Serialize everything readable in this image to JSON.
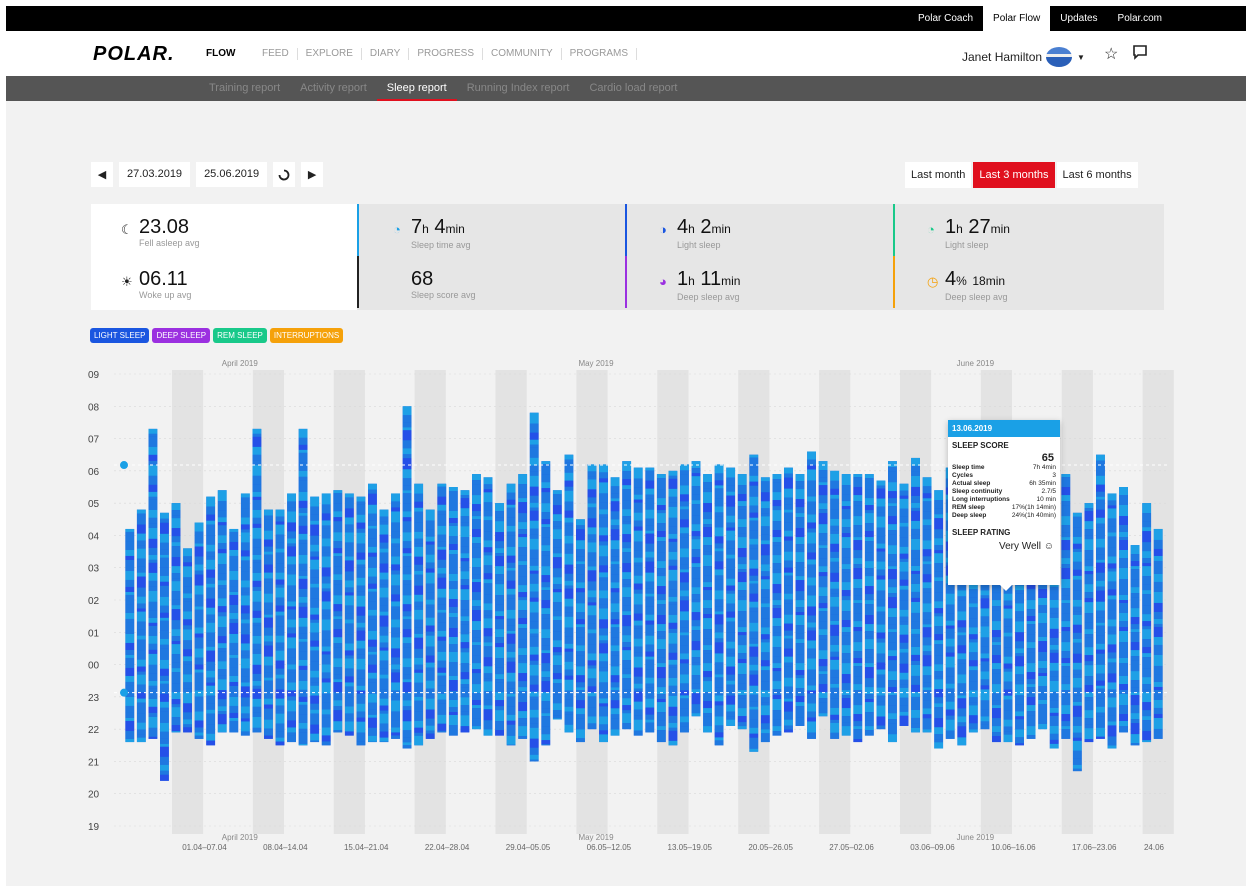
{
  "topbar": {
    "links": [
      "Polar Coach",
      "Polar Flow",
      "Updates",
      "Polar.com"
    ],
    "active": "Polar Flow"
  },
  "header": {
    "logo": "POLAR.",
    "product": "FLOW",
    "nav": [
      "FEED",
      "EXPLORE",
      "DIARY",
      "PROGRESS",
      "COMMUNITY",
      "PROGRAMS"
    ],
    "user": "Janet Hamilton"
  },
  "subnav": {
    "items": [
      "Training report",
      "Activity report",
      "Sleep report",
      "Running Index report",
      "Cardio load report"
    ],
    "active": "Sleep report"
  },
  "date_range": {
    "start": "27.03.2019",
    "end": "25.06.2019"
  },
  "range_buttons": {
    "items": [
      "Last month",
      "Last 3 months",
      "Last 6 months"
    ],
    "active": "Last 3 months"
  },
  "stats": {
    "fell_asleep": {
      "value": "23.08",
      "label": "Fell asleep avg"
    },
    "woke_up": {
      "value": "06.11",
      "label": "Woke up avg"
    },
    "sleep_time": {
      "h": "7",
      "m": "4",
      "label": "Sleep time avg"
    },
    "sleep_score": {
      "value": "68",
      "label": "Sleep score avg"
    },
    "light_sleep": {
      "h": "4",
      "m": "2",
      "label": "Light sleep"
    },
    "deep_sleep": {
      "h": "1",
      "m": "11",
      "label": "Deep sleep avg"
    },
    "rem_sleep": {
      "h": "1",
      "m": "27",
      "label": "Light sleep"
    },
    "interruptions": {
      "pct": "4",
      "m": "18",
      "label": "Deep sleep avg"
    }
  },
  "legend": [
    {
      "label": "LIGHT SLEEP",
      "color": "#1a56e0"
    },
    {
      "label": "DEEP SLEEP",
      "color": "#9b30e0"
    },
    {
      "label": "REM SLEEP",
      "color": "#19c98a"
    },
    {
      "label": "INTERRUPTIONS",
      "color": "#f5a10a"
    }
  ],
  "units": {
    "h": "h",
    "min": "min",
    "pct": "%"
  },
  "tooltip": {
    "date": "13.06.2019",
    "title": "SLEEP SCORE",
    "score": "65",
    "rows": [
      {
        "k": "Sleep time",
        "v": "7h 4min"
      },
      {
        "k": "Cycles",
        "v": "3"
      },
      {
        "k": "Actual sleep",
        "v": "6h 35min"
      },
      {
        "k": "Sleep continuity",
        "v": "2.7/5"
      },
      {
        "k": "Long interruptions",
        "v": "10 min"
      },
      {
        "k": "REM sleep",
        "v": "17%(1h 14min)"
      },
      {
        "k": "Deep sleep",
        "v": "24%(1h 40min)"
      }
    ],
    "rating_title": "SLEEP RATING",
    "rating": "Very Well ☺"
  },
  "chart_data": {
    "type": "bar",
    "y_ticks": [
      "09",
      "08",
      "07",
      "06",
      "05",
      "04",
      "03",
      "02",
      "01",
      "00",
      "23",
      "22",
      "21",
      "20",
      "19"
    ],
    "months": [
      "April 2019",
      "May 2019",
      "June 2019"
    ],
    "weeks": [
      "01.04–07.04",
      "08.04–14.04",
      "15.04–21.04",
      "22.04–28.04",
      "29.04–05.05",
      "06.05–12.05",
      "13.05–19.05",
      "20.05–26.05",
      "27.05–02.06",
      "03.06–09.06",
      "10.06–16.06",
      "17.06–23.06",
      "24.06"
    ],
    "avg_lines": {
      "woke_up": 6.18,
      "fell_asleep": 23.13
    },
    "series": [
      {
        "name": "Sleep",
        "start_hour": [
          21.6,
          21.6,
          21.7,
          20.4,
          21.9,
          21.9,
          21.7,
          21.5,
          21.9,
          21.9,
          21.8,
          21.9,
          21.7,
          21.5,
          21.6,
          21.5,
          21.6,
          21.5,
          21.9,
          21.8,
          21.5,
          21.6,
          21.6,
          21.7,
          21.4,
          21.5,
          21.7,
          21.9,
          21.8,
          21.9,
          22.0,
          21.8,
          21.8,
          21.5,
          21.7,
          21.0,
          21.5,
          22.3,
          21.9,
          21.6,
          22.0,
          21.6,
          21.8,
          22.0,
          21.8,
          21.9,
          21.6,
          21.5,
          21.9,
          22.4,
          21.9,
          21.5,
          22.1,
          22.0,
          21.3,
          21.6,
          21.8,
          21.9,
          22.1,
          21.7,
          22.4,
          21.7,
          21.8,
          21.6,
          21.8,
          22.0,
          21.6,
          22.1,
          21.9,
          21.9,
          21.4,
          21.7,
          21.5,
          21.9,
          22.0,
          21.6,
          21.6,
          21.5,
          21.7,
          22.0,
          21.4,
          21.7,
          20.7,
          21.6,
          21.7,
          21.4,
          21.9,
          21.5,
          21.6,
          21.7
        ],
        "end_hour": [
          4.2,
          4.8,
          7.3,
          4.7,
          5.0,
          3.6,
          4.4,
          5.2,
          5.4,
          4.2,
          5.3,
          7.3,
          4.8,
          4.8,
          5.3,
          7.3,
          5.2,
          5.3,
          5.4,
          5.3,
          5.2,
          5.6,
          4.8,
          5.3,
          8.0,
          5.6,
          4.8,
          5.6,
          5.5,
          5.4,
          5.9,
          5.8,
          5.0,
          5.6,
          5.9,
          7.8,
          6.3,
          5.4,
          6.5,
          4.5,
          6.2,
          6.2,
          5.8,
          6.3,
          6.1,
          6.1,
          5.9,
          6.0,
          6.2,
          6.3,
          5.9,
          6.2,
          6.1,
          5.9,
          6.5,
          5.8,
          5.9,
          6.1,
          5.9,
          6.6,
          6.3,
          6.0,
          5.9,
          5.9,
          5.9,
          5.7,
          6.3,
          5.6,
          6.4,
          5.8,
          5.4,
          6.1,
          4.9,
          5.8,
          6.2,
          5.9,
          6.1,
          5.8,
          5.9,
          5.5,
          7.3,
          5.9,
          4.7,
          5.0,
          6.5,
          5.3,
          5.5,
          3.7,
          5.0,
          4.2
        ]
      }
    ],
    "ylim": [
      19,
      33
    ]
  }
}
